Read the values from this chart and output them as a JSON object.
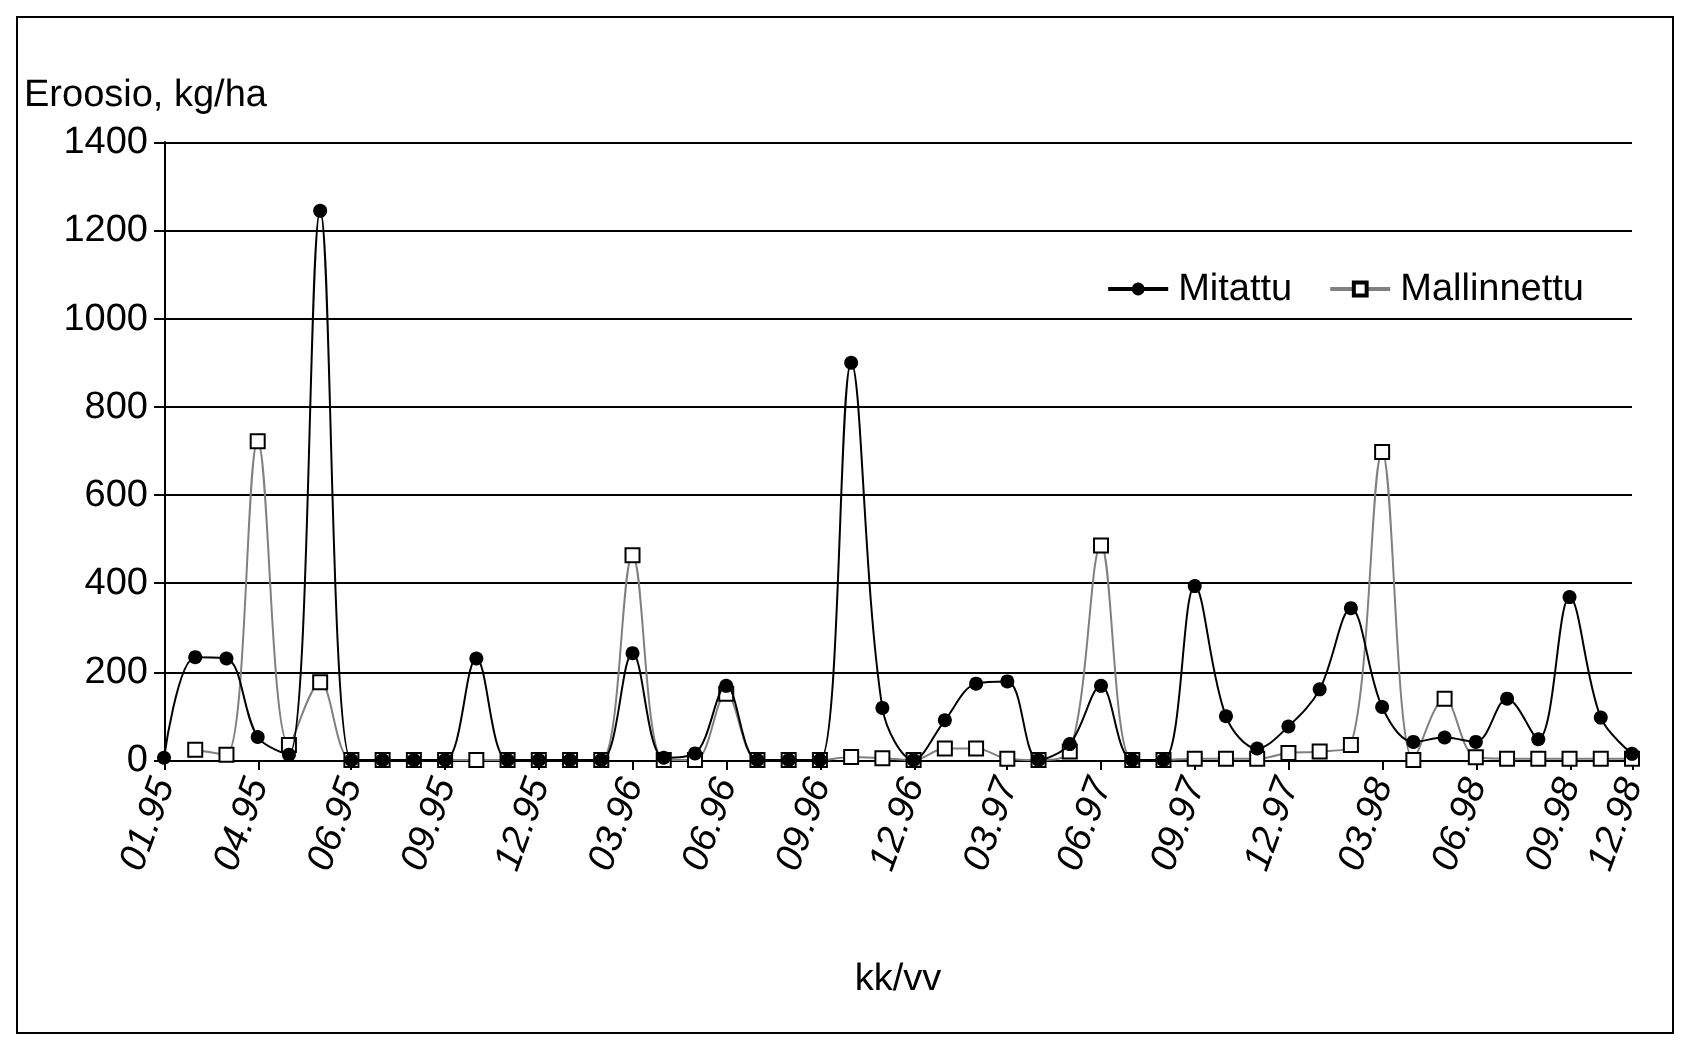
{
  "chart_data": {
    "type": "line",
    "ylabel": "Eroosio, kg/ha",
    "xlabel": "kk/vv",
    "categories": [
      "01.95",
      null,
      null,
      "04.95",
      null,
      null,
      "06.95",
      null,
      null,
      "09.95",
      null,
      null,
      "12.95",
      null,
      null,
      "03.96",
      null,
      null,
      "06.96",
      null,
      null,
      "09.96",
      null,
      null,
      "12.96",
      null,
      null,
      "03.97",
      null,
      null,
      "06.97",
      null,
      null,
      "09.97",
      null,
      null,
      "12.97",
      null,
      null,
      "03.98",
      null,
      null,
      "06.98",
      null,
      null,
      "09.98",
      null,
      "12.98"
    ],
    "series": [
      {
        "name": "Mitattu",
        "color": "#000000",
        "marker": "circle",
        "values": [
          5,
          233,
          230,
          52,
          12,
          1244,
          0,
          0,
          0,
          0,
          230,
          0,
          0,
          0,
          0,
          242,
          5,
          15,
          168,
          0,
          0,
          0,
          900,
          118,
          0,
          90,
          173,
          178,
          0,
          36,
          168,
          0,
          0,
          394,
          99,
          26,
          76,
          160,
          344,
          120,
          41,
          51,
          41,
          139,
          47,
          369,
          96,
          14
        ]
      },
      {
        "name": "Mallinnettu",
        "color": "#808080",
        "marker": "square",
        "values": [
          null,
          23,
          12,
          722,
          34,
          176,
          0,
          0,
          0,
          0,
          0,
          0,
          0,
          0,
          0,
          464,
          0,
          0,
          150,
          0,
          0,
          0,
          7,
          4,
          0,
          26,
          26,
          3,
          0,
          19,
          486,
          0,
          0,
          3,
          3,
          3,
          16,
          19,
          34,
          698,
          0,
          139,
          6,
          3,
          3,
          3,
          3,
          3
        ]
      }
    ],
    "ylim": [
      0,
      1400
    ],
    "yticks": [
      0,
      200,
      400,
      600,
      800,
      1000,
      1200,
      1400
    ],
    "grid": "y",
    "legend": "top right",
    "line_style": "solid"
  }
}
